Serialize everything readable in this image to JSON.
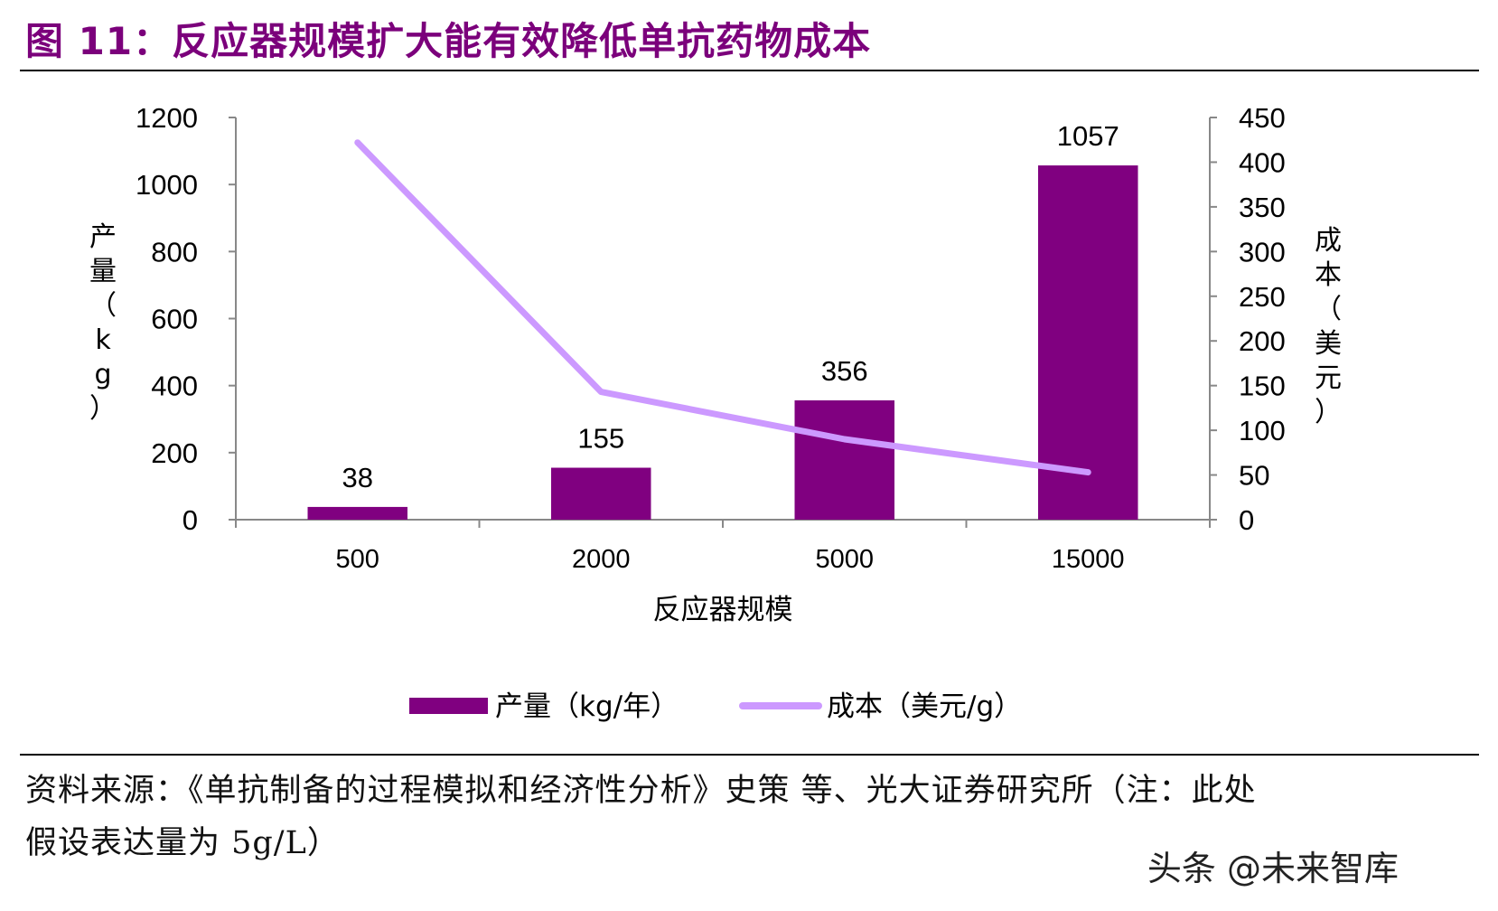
{
  "figure": {
    "title": "图 11：反应器规模扩大能有效降低单抗药物成本",
    "source_line1": "资料来源：《单抗制备的过程模拟和经济性分析》史策 等、光大证券研究所（注：此处",
    "source_line2": "假设表达量为 5g/L）",
    "watermark": "头条 @未来智库"
  },
  "colors": {
    "title": "#7b007b",
    "bar": "#800080",
    "line": "#cc99ff",
    "axis": "#888888"
  },
  "chart_data": {
    "type": "bar",
    "categories": [
      "500",
      "2000",
      "5000",
      "15000"
    ],
    "xlabel": "反应器规模",
    "ylabel_left": "产量（kg）",
    "ylabel_right": "成本（美元）",
    "y_left_range": [
      0,
      1200
    ],
    "y_left_ticks": [
      "0",
      "200",
      "400",
      "600",
      "800",
      "1000",
      "1200"
    ],
    "y_right_range": [
      0,
      450
    ],
    "y_right_ticks": [
      "0",
      "50",
      "100",
      "150",
      "200",
      "250",
      "300",
      "350",
      "400",
      "450"
    ],
    "series": [
      {
        "name": "产量（kg/年）",
        "type": "bar",
        "axis": "left",
        "values": [
          38,
          155,
          356,
          1057
        ],
        "labels": [
          "38",
          "155",
          "356",
          "1057"
        ]
      },
      {
        "name": "成本（美元/g）",
        "type": "line",
        "axis": "right",
        "values": [
          422,
          143,
          90,
          53
        ]
      }
    ],
    "legend_position": "bottom",
    "grid": false
  }
}
